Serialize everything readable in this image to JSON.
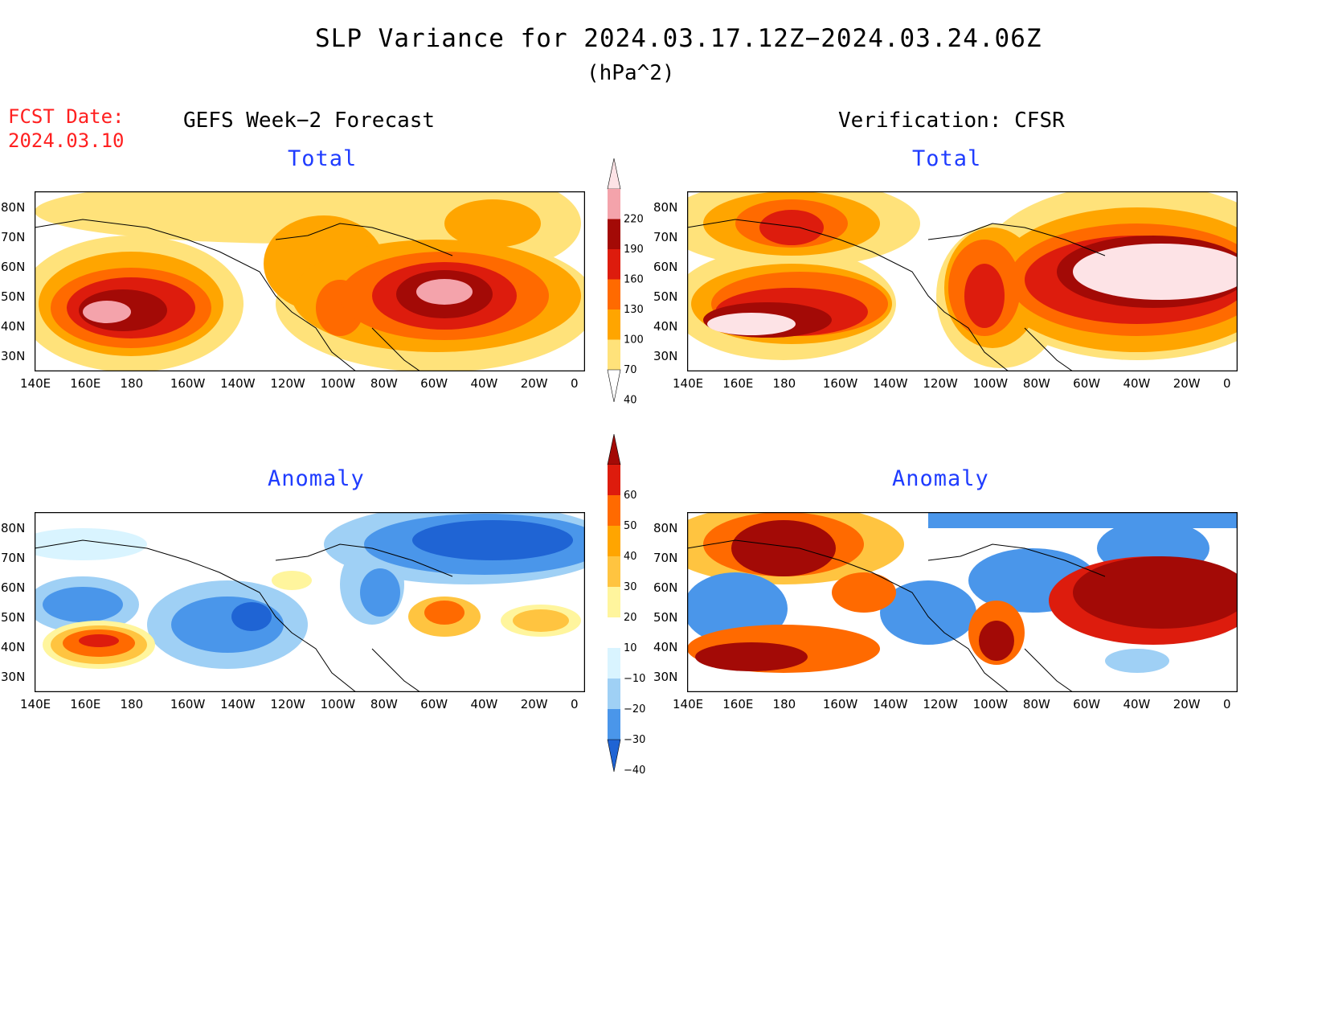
{
  "title": "SLP Variance for 2024.03.17.12Z−2024.03.24.06Z",
  "units": "(hPa^2)",
  "fcst_label": "FCST Date:",
  "fcst_date": "2024.03.10",
  "left_title": "GEFS Week−2 Forecast",
  "right_title": "Verification: CFSR",
  "panels": {
    "fc_total": {
      "subtitle": "Total"
    },
    "ver_total": {
      "subtitle": "Total"
    },
    "fc_anom": {
      "subtitle": "Anomaly"
    },
    "ver_anom": {
      "subtitle": "Anomaly"
    }
  },
  "lon_ticks": [
    "140E",
    "160E",
    "180",
    "160W",
    "140W",
    "120W",
    "100W",
    "80W",
    "60W",
    "40W",
    "20W",
    "0"
  ],
  "lat_ticks": [
    "80N",
    "70N",
    "60N",
    "50N",
    "40N",
    "30N"
  ],
  "colorbar_total": {
    "labels": [
      "220",
      "190",
      "160",
      "130",
      "100",
      "70",
      "40"
    ],
    "colors": [
      "#fde3e6",
      "#f4a3ab",
      "#a30a06",
      "#dd1c0d",
      "#ff6a00",
      "#ffa500",
      "#ffe27a",
      "#ffffff"
    ]
  },
  "colorbar_anom": {
    "labels": [
      "60",
      "50",
      "40",
      "30",
      "20",
      "10",
      "−10",
      "−20",
      "−30",
      "−40"
    ],
    "colors": [
      "#a30a06",
      "#dd1c0d",
      "#ff6a00",
      "#ffa500",
      "#ffc440",
      "#fff59d",
      "#ffffff",
      "#d9f4ff",
      "#9fd0f5",
      "#4a96ea",
      "#1f64d4"
    ]
  }
}
